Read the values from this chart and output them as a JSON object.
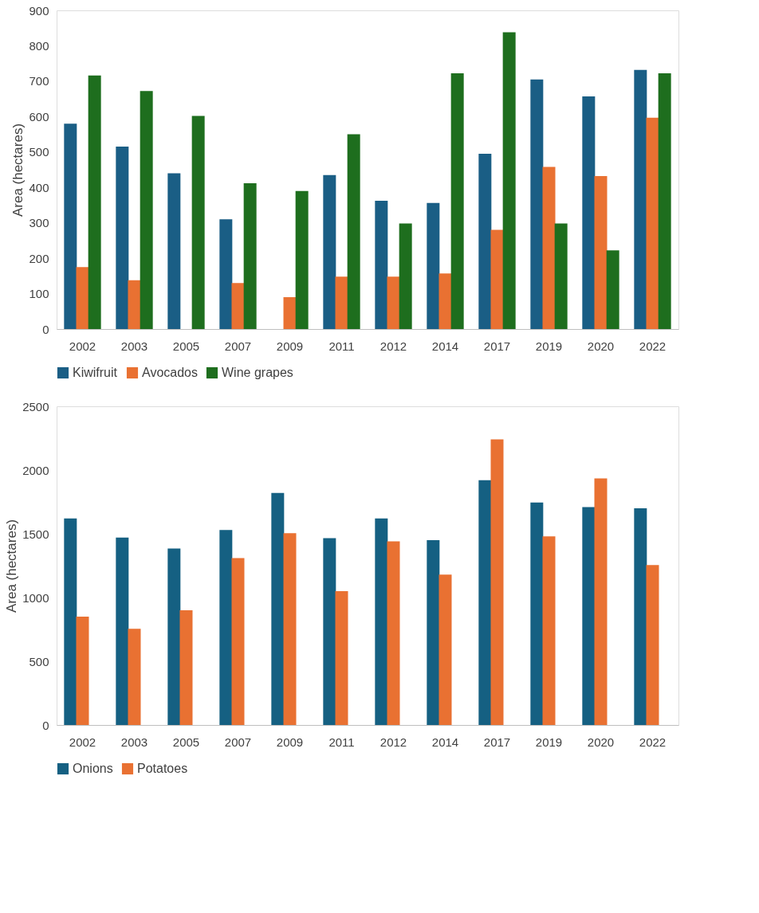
{
  "chart_data": [
    {
      "type": "bar",
      "ylabel": "Area (hectares)",
      "categories": [
        "2002",
        "2003",
        "2005",
        "2007",
        "2009",
        "2011",
        "2012",
        "2014",
        "2017",
        "2019",
        "2020",
        "2022"
      ],
      "series": [
        {
          "name": "Kiwifruit",
          "color": "#1a5e85",
          "values": [
            580,
            515,
            440,
            310,
            null,
            435,
            362,
            356,
            495,
            705,
            657,
            732
          ]
        },
        {
          "name": "Avocados",
          "color": "#e97132",
          "values": [
            175,
            138,
            null,
            130,
            90,
            148,
            148,
            157,
            280,
            458,
            432,
            597
          ]
        },
        {
          "name": "Wine grapes",
          "color": "#1e6e1e",
          "values": [
            716,
            672,
            602,
            412,
            390,
            550,
            298,
            722,
            838,
            298,
            222,
            722
          ]
        }
      ],
      "ylim": [
        0,
        900
      ],
      "yticks": [
        0,
        100,
        200,
        300,
        400,
        500,
        600,
        700,
        800,
        900
      ],
      "grid": false,
      "legend": "bottom"
    },
    {
      "type": "bar",
      "ylabel": "Area (hectares)",
      "categories": [
        "2002",
        "2003",
        "2005",
        "2007",
        "2009",
        "2011",
        "2012",
        "2014",
        "2017",
        "2019",
        "2020",
        "2022"
      ],
      "series": [
        {
          "name": "Onions",
          "color": "#156082",
          "values": [
            1620,
            1470,
            1385,
            1530,
            1820,
            1465,
            1620,
            1450,
            1920,
            1745,
            1710,
            1700
          ]
        },
        {
          "name": "Potatoes",
          "color": "#e97132",
          "values": [
            850,
            755,
            900,
            1310,
            1505,
            1050,
            1440,
            1180,
            2240,
            1480,
            1935,
            1255
          ]
        }
      ],
      "ylim": [
        0,
        2500
      ],
      "yticks": [
        0,
        500,
        1000,
        1500,
        2000,
        2500
      ],
      "grid": false,
      "legend": "bottom"
    }
  ]
}
